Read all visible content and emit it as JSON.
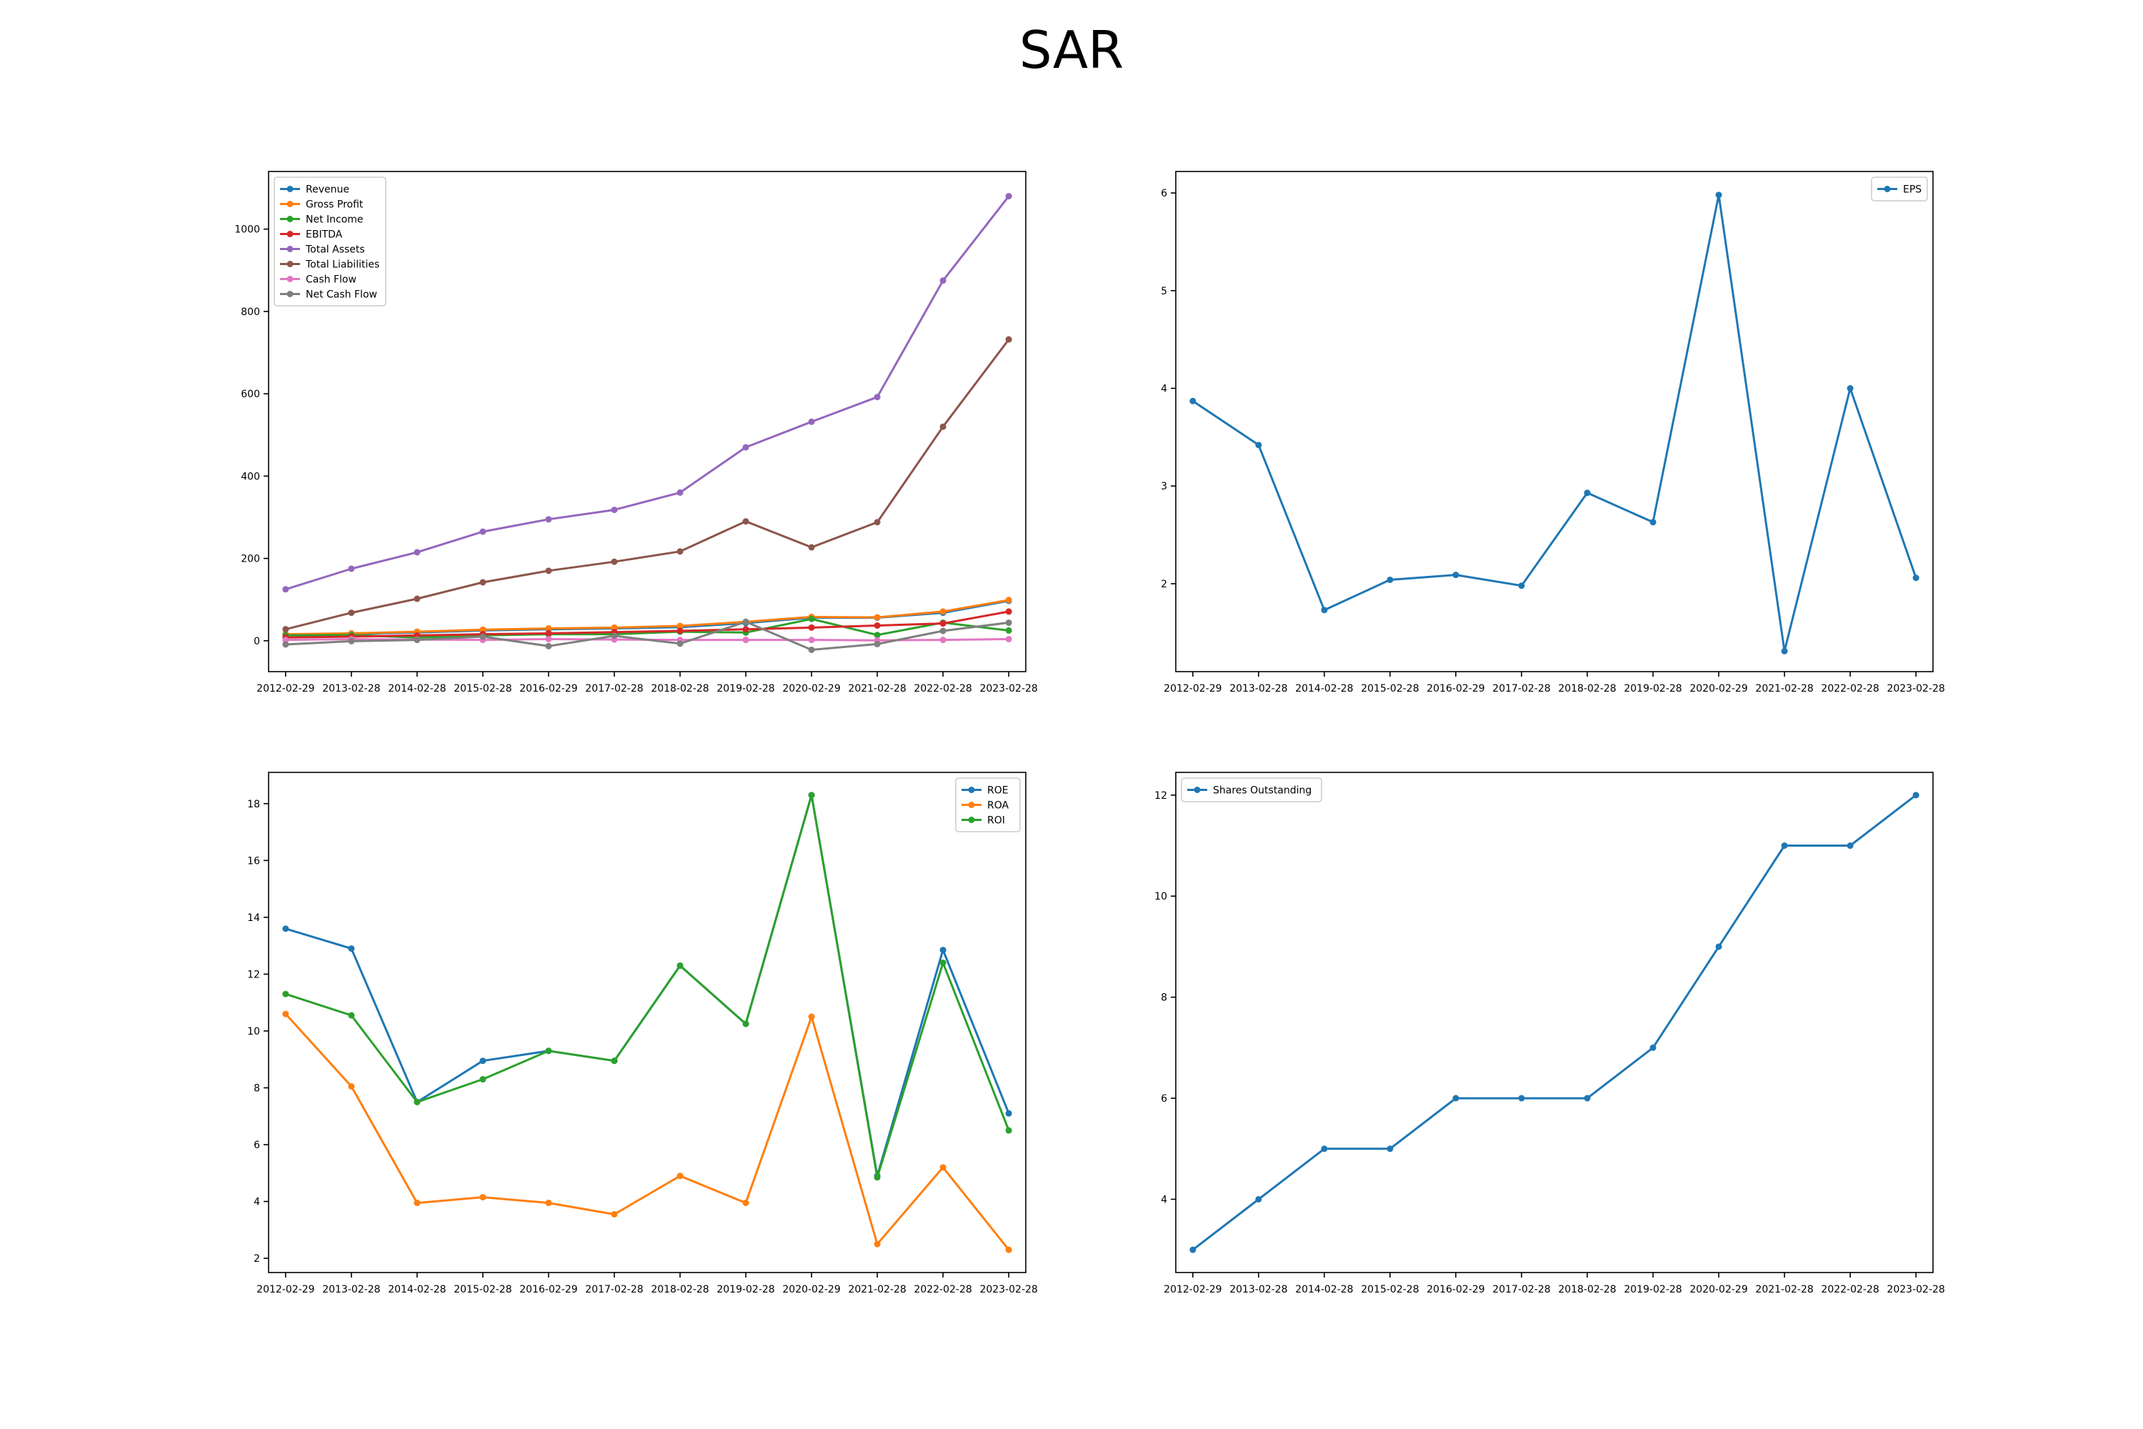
{
  "figure_title": "SAR",
  "chart_data": [
    {
      "type": "line",
      "x": [
        "2012-02-29",
        "2013-02-28",
        "2014-02-28",
        "2015-02-28",
        "2016-02-29",
        "2017-02-28",
        "2018-02-28",
        "2019-02-28",
        "2020-02-29",
        "2021-02-28",
        "2022-02-28",
        "2023-02-28"
      ],
      "ylim": [
        -75,
        1140
      ],
      "yticks": [
        0,
        200,
        400,
        600,
        800,
        1000
      ],
      "legend_position": "upper left",
      "grid": false,
      "series": [
        {
          "name": "Revenue",
          "color": "#1f77b4",
          "values": [
            16,
            17,
            20,
            25,
            28,
            30,
            33,
            43,
            56,
            56,
            68,
            97
          ]
        },
        {
          "name": "Gross Profit",
          "color": "#ff7f0e",
          "values": [
            16,
            18,
            22,
            27,
            30,
            32,
            36,
            46,
            58,
            57,
            71,
            99
          ]
        },
        {
          "name": "Net Income",
          "color": "#2ca02c",
          "values": [
            13,
            14,
            8,
            13,
            16,
            16,
            22,
            20,
            53,
            14,
            44,
            25
          ]
        },
        {
          "name": "EBITDA",
          "color": "#d62728",
          "values": [
            8,
            10,
            13,
            16,
            18,
            21,
            24,
            28,
            32,
            37,
            42,
            71
          ]
        },
        {
          "name": "Total Assets",
          "color": "#9467bd",
          "values": [
            125,
            175,
            215,
            265,
            295,
            318,
            360,
            470,
            532,
            592,
            875,
            1080
          ]
        },
        {
          "name": "Total Liabilities",
          "color": "#8c564b",
          "values": [
            28,
            68,
            102,
            142,
            170,
            192,
            217,
            290,
            227,
            288,
            520,
            732
          ]
        },
        {
          "name": "Cash Flow",
          "color": "#e377c2",
          "values": [
            2,
            4,
            3,
            2,
            4,
            3,
            2,
            2,
            2,
            1,
            2,
            4
          ]
        },
        {
          "name": "Net Cash Flow",
          "color": "#7f7f7f",
          "values": [
            -9,
            -1,
            2,
            10,
            -13,
            12,
            -7,
            46,
            -22,
            -8,
            24,
            44
          ]
        }
      ]
    },
    {
      "type": "line",
      "x": [
        "2012-02-29",
        "2013-02-28",
        "2014-02-28",
        "2015-02-28",
        "2016-02-29",
        "2017-02-28",
        "2018-02-28",
        "2019-02-28",
        "2020-02-29",
        "2021-02-28",
        "2022-02-28",
        "2023-02-28"
      ],
      "ylim": [
        1.1,
        6.22
      ],
      "yticks": [
        2,
        3,
        4,
        5,
        6
      ],
      "legend_position": "upper right",
      "grid": false,
      "series": [
        {
          "name": "EPS",
          "color": "#1f77b4",
          "values": [
            3.87,
            3.42,
            1.73,
            2.04,
            2.09,
            1.98,
            2.93,
            2.63,
            5.98,
            1.31,
            4.0,
            2.06
          ]
        }
      ]
    },
    {
      "type": "line",
      "x": [
        "2012-02-29",
        "2013-02-28",
        "2014-02-28",
        "2015-02-28",
        "2016-02-29",
        "2017-02-28",
        "2018-02-28",
        "2019-02-28",
        "2020-02-29",
        "2021-02-28",
        "2022-02-28",
        "2023-02-28"
      ],
      "ylim": [
        1.5,
        19.1
      ],
      "yticks": [
        2,
        4,
        6,
        8,
        10,
        12,
        14,
        16,
        18
      ],
      "legend_position": "upper right",
      "grid": false,
      "series": [
        {
          "name": "ROE",
          "color": "#1f77b4",
          "values": [
            13.6,
            12.9,
            7.5,
            8.95,
            9.3,
            8.95,
            12.3,
            10.25,
            18.3,
            4.9,
            12.85,
            7.1
          ]
        },
        {
          "name": "ROA",
          "color": "#ff7f0e",
          "values": [
            10.6,
            8.05,
            3.95,
            4.15,
            3.95,
            3.55,
            4.9,
            3.95,
            10.5,
            2.5,
            5.2,
            2.3
          ]
        },
        {
          "name": "ROI",
          "color": "#2ca02c",
          "values": [
            11.3,
            10.55,
            7.5,
            8.3,
            9.3,
            8.95,
            12.3,
            10.25,
            18.3,
            4.85,
            12.4,
            6.5
          ]
        }
      ]
    },
    {
      "type": "line",
      "x": [
        "2012-02-29",
        "2013-02-28",
        "2014-02-28",
        "2015-02-28",
        "2016-02-29",
        "2017-02-28",
        "2018-02-28",
        "2019-02-28",
        "2020-02-29",
        "2021-02-28",
        "2022-02-28",
        "2023-02-28"
      ],
      "ylim": [
        2.55,
        12.45
      ],
      "yticks": [
        4,
        6,
        8,
        10,
        12
      ],
      "legend_position": "upper left",
      "grid": false,
      "series": [
        {
          "name": "Shares Outstanding",
          "color": "#1f77b4",
          "values": [
            3,
            4,
            5,
            5,
            6,
            6,
            6,
            7,
            9,
            11,
            11,
            12
          ]
        }
      ]
    }
  ]
}
